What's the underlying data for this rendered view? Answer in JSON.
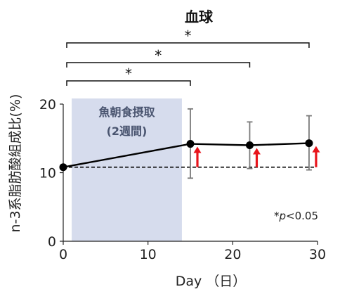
{
  "chart_data": {
    "type": "line",
    "title": "血球",
    "xlabel": "Day （日）",
    "ylabel": "n-3系脂肪酸組成比(%)",
    "x": [
      0,
      15,
      22,
      29
    ],
    "xlim": [
      0,
      30
    ],
    "ylim": [
      0,
      20
    ],
    "xticks": [
      0,
      10,
      20,
      30
    ],
    "yticks": [
      0,
      10,
      20
    ],
    "series": [
      {
        "values": [
          10.8,
          14.2,
          14.0,
          14.3
        ],
        "error_low": [
          null,
          9.2,
          10.6,
          10.4
        ],
        "error_high": [
          null,
          19.3,
          17.4,
          18.3
        ],
        "color": "#000000"
      }
    ],
    "baseline": {
      "value": 10.8,
      "style": "dashed"
    },
    "shaded_region": {
      "x_start": 1,
      "x_end": 14,
      "label_line1": "魚朝食摂取",
      "label_line2": "(2週間)",
      "color": "#d6dced"
    },
    "significance": [
      {
        "from_day": 0,
        "to_day": 15,
        "label": "*"
      },
      {
        "from_day": 0,
        "to_day": 22,
        "label": "*"
      },
      {
        "from_day": 0,
        "to_day": 29,
        "label": "*"
      }
    ],
    "arrows": {
      "days": [
        15,
        22,
        29
      ],
      "color": "#e8141b"
    },
    "annotation": {
      "star": "*",
      "p_italic": "p",
      "rest": "<0.05"
    },
    "grid": false
  }
}
